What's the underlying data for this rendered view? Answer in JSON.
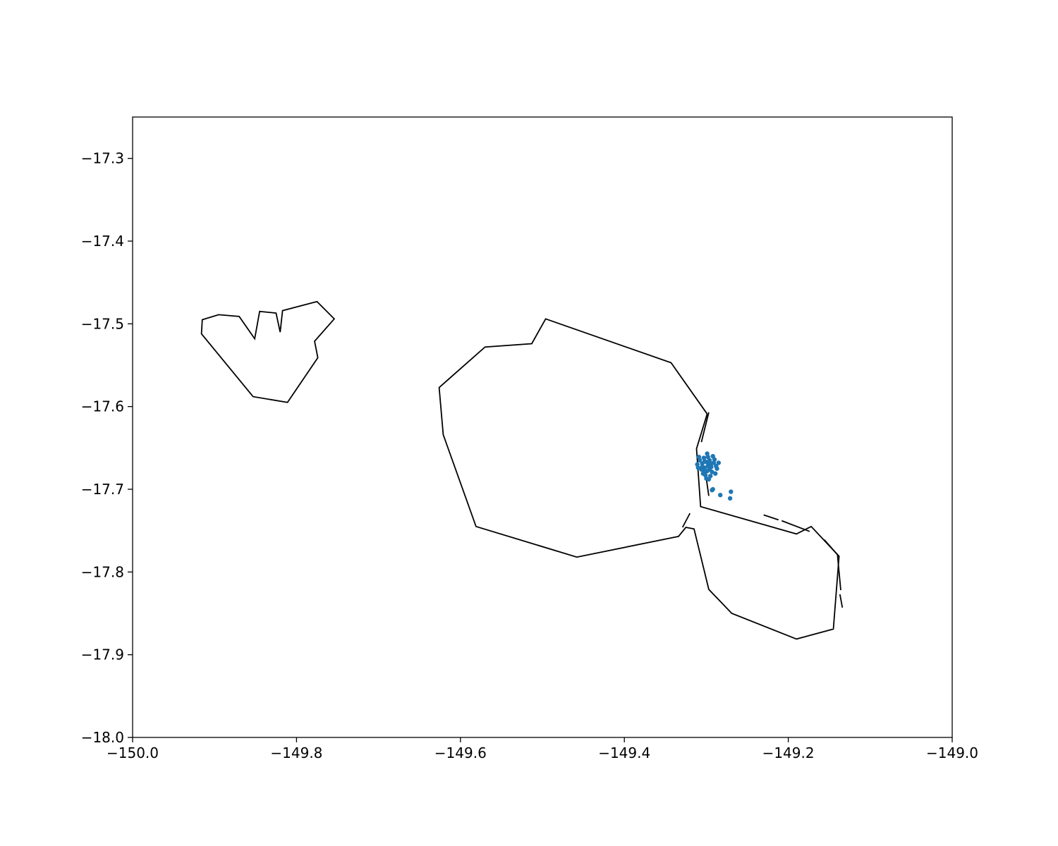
{
  "chart_data": {
    "type": "scatter",
    "title": "",
    "xlabel": "",
    "ylabel": "",
    "xlim": [
      -150.0,
      -149.0
    ],
    "ylim": [
      -18.0,
      -17.25
    ],
    "x_ticks": [
      {
        "value": -150.0,
        "label": "−150.0"
      },
      {
        "value": -149.8,
        "label": "−149.8"
      },
      {
        "value": -149.6,
        "label": "−149.6"
      },
      {
        "value": -149.4,
        "label": "−149.4"
      },
      {
        "value": -149.2,
        "label": "−149.2"
      },
      {
        "value": -149.0,
        "label": "−149.0"
      }
    ],
    "y_ticks": [
      {
        "value": -17.3,
        "label": "−17.3"
      },
      {
        "value": -17.4,
        "label": "−17.4"
      },
      {
        "value": -17.5,
        "label": "−17.5"
      },
      {
        "value": -17.6,
        "label": "−17.6"
      },
      {
        "value": -17.7,
        "label": "−17.7"
      },
      {
        "value": -17.8,
        "label": "−17.8"
      },
      {
        "value": -17.9,
        "label": "−17.9"
      },
      {
        "value": -18.0,
        "label": "−18.0"
      }
    ],
    "grid": false,
    "coastline_color": "#000000",
    "point_color": "#1f77b4",
    "coastlines": [
      {
        "name": "moorea",
        "closed": true,
        "points": [
          [
            -149.915,
            -17.495
          ],
          [
            -149.895,
            -17.489
          ],
          [
            -149.87,
            -17.491
          ],
          [
            -149.851,
            -17.518
          ],
          [
            -149.845,
            -17.485
          ],
          [
            -149.825,
            -17.487
          ],
          [
            -149.82,
            -17.51
          ],
          [
            -149.817,
            -17.484
          ],
          [
            -149.775,
            -17.473
          ],
          [
            -149.754,
            -17.494
          ],
          [
            -149.778,
            -17.521
          ],
          [
            -149.774,
            -17.541
          ],
          [
            -149.811,
            -17.595
          ],
          [
            -149.853,
            -17.588
          ],
          [
            -149.916,
            -17.512
          ]
        ]
      },
      {
        "name": "tahiti-nui",
        "closed": false,
        "points": [
          [
            -149.299,
            -17.609
          ],
          [
            -149.312,
            -17.651
          ],
          [
            -149.307,
            -17.721
          ],
          [
            -149.19,
            -17.754
          ],
          [
            -149.172,
            -17.745
          ],
          [
            -149.138,
            -17.781
          ],
          [
            -149.145,
            -17.869
          ],
          [
            -149.19,
            -17.881
          ],
          [
            -149.269,
            -17.85
          ],
          [
            -149.297,
            -17.821
          ],
          [
            -149.315,
            -17.748
          ],
          [
            -149.325,
            -17.746
          ],
          [
            -149.334,
            -17.757
          ],
          [
            -149.458,
            -17.782
          ],
          [
            -149.581,
            -17.745
          ],
          [
            -149.621,
            -17.634
          ],
          [
            -149.626,
            -17.577
          ],
          [
            -149.57,
            -17.528
          ],
          [
            -149.513,
            -17.524
          ],
          [
            -149.496,
            -17.494
          ],
          [
            -149.343,
            -17.547
          ],
          [
            -149.299,
            -17.609
          ]
        ]
      },
      {
        "name": "isthmus-fragment",
        "closed": false,
        "points": [
          [
            -149.32,
            -17.729
          ],
          [
            -149.329,
            -17.746
          ]
        ]
      },
      {
        "name": "reef-segment-1",
        "closed": false,
        "points": [
          [
            -149.297,
            -17.607
          ],
          [
            -149.306,
            -17.643
          ]
        ]
      },
      {
        "name": "reef-segment-2",
        "closed": false,
        "points": [
          [
            -149.301,
            -17.68
          ],
          [
            -149.297,
            -17.708
          ]
        ]
      },
      {
        "name": "reef-segment-3",
        "closed": false,
        "points": [
          [
            -149.23,
            -17.731
          ],
          [
            -149.212,
            -17.737
          ]
        ]
      },
      {
        "name": "reef-segment-4",
        "closed": false,
        "points": [
          [
            -149.208,
            -17.738
          ],
          [
            -149.174,
            -17.751
          ]
        ]
      },
      {
        "name": "reef-segment-5",
        "closed": false,
        "points": [
          [
            -149.156,
            -17.761
          ],
          [
            -149.14,
            -17.779
          ],
          [
            -149.136,
            -17.822
          ]
        ]
      },
      {
        "name": "reef-segment-6",
        "closed": false,
        "points": [
          [
            -149.137,
            -17.827
          ],
          [
            -149.134,
            -17.843
          ]
        ]
      }
    ],
    "scatter_points": [
      [
        -149.3,
        -17.667
      ],
      [
        -149.297,
        -17.67
      ],
      [
        -149.302,
        -17.674
      ],
      [
        -149.299,
        -17.678
      ],
      [
        -149.296,
        -17.665
      ],
      [
        -149.303,
        -17.662
      ],
      [
        -149.305,
        -17.669
      ],
      [
        -149.294,
        -17.673
      ],
      [
        -149.298,
        -17.661
      ],
      [
        -149.301,
        -17.683
      ],
      [
        -149.291,
        -17.668
      ],
      [
        -149.288,
        -17.672
      ],
      [
        -149.308,
        -17.665
      ],
      [
        -149.306,
        -17.676
      ],
      [
        -149.293,
        -17.679
      ],
      [
        -149.29,
        -17.664
      ],
      [
        -149.299,
        -17.657
      ],
      [
        -149.311,
        -17.67
      ],
      [
        -149.304,
        -17.681
      ],
      [
        -149.295,
        -17.684
      ],
      [
        -149.287,
        -17.675
      ],
      [
        -149.292,
        -17.66
      ],
      [
        -149.309,
        -17.661
      ],
      [
        -149.31,
        -17.674
      ],
      [
        -149.3,
        -17.687
      ],
      [
        -149.296,
        -17.676
      ],
      [
        -149.302,
        -17.666
      ],
      [
        -149.298,
        -17.672
      ],
      [
        -149.294,
        -17.669
      ],
      [
        -149.305,
        -17.673
      ],
      [
        -149.289,
        -17.681
      ],
      [
        -149.303,
        -17.678
      ],
      [
        -149.297,
        -17.688
      ],
      [
        -149.285,
        -17.668
      ],
      [
        -149.292,
        -17.7
      ],
      [
        -149.293,
        -17.701
      ],
      [
        -149.283,
        -17.707
      ],
      [
        -149.27,
        -17.703
      ],
      [
        -149.271,
        -17.711
      ]
    ]
  }
}
